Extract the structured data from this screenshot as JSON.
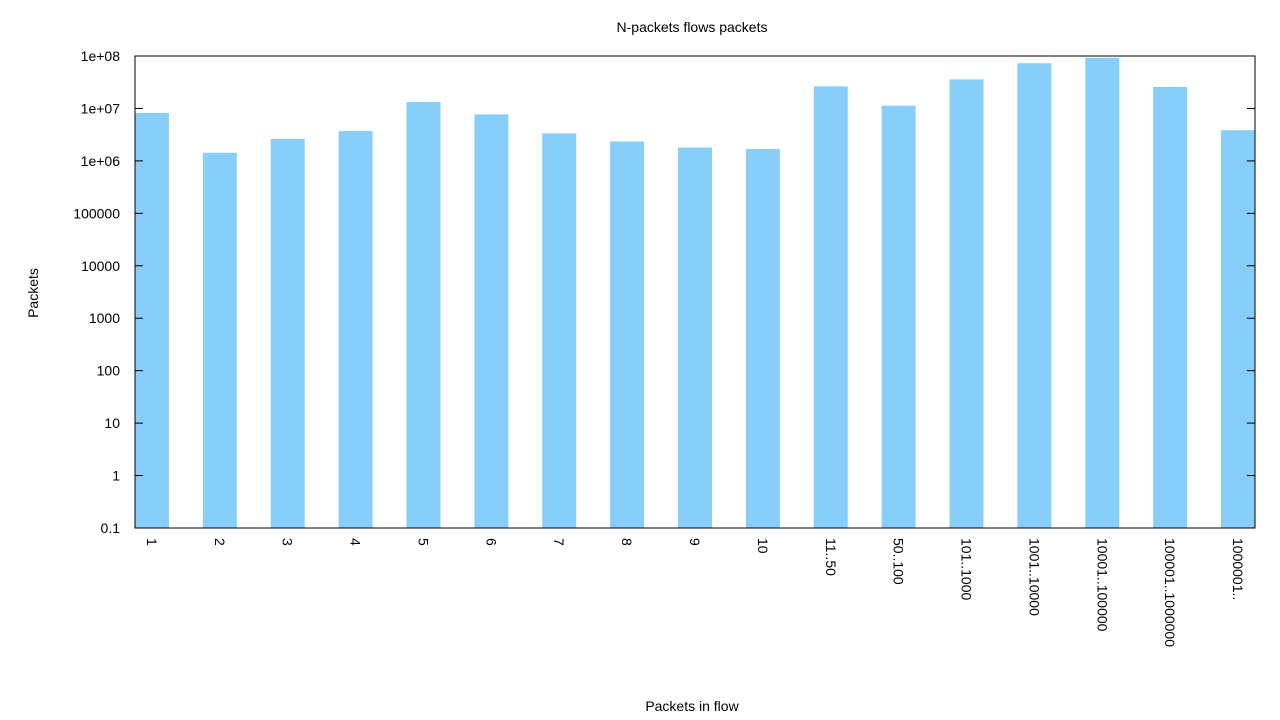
{
  "chart_data": {
    "type": "bar",
    "title": "N-packets flows packets",
    "xlabel": "Packets in flow",
    "ylabel": "Packets",
    "yscale": "log",
    "ylim": [
      0.1,
      100000000
    ],
    "yticks": [
      "0.1",
      "1",
      "10",
      "100",
      "1000",
      "10000",
      "100000",
      "1e+06",
      "1e+07",
      "1e+08"
    ],
    "bar_color": "#87cefa",
    "grid": false,
    "categories": [
      "1",
      "2",
      "3",
      "4",
      "5",
      "6",
      "7",
      "8",
      "9",
      "10",
      "11..50",
      "50..100",
      "101..1000",
      "1001..10000",
      "10001..100000",
      "100001..1000000",
      "1000001.."
    ],
    "series": [
      {
        "values": [
          8200000,
          1430000,
          2620000,
          3700000,
          13300000,
          7700000,
          3350000,
          2350000,
          1800000,
          1680000,
          26400000,
          11300000,
          35800000,
          72900000,
          92500000,
          25700000,
          3850000
        ]
      }
    ]
  }
}
